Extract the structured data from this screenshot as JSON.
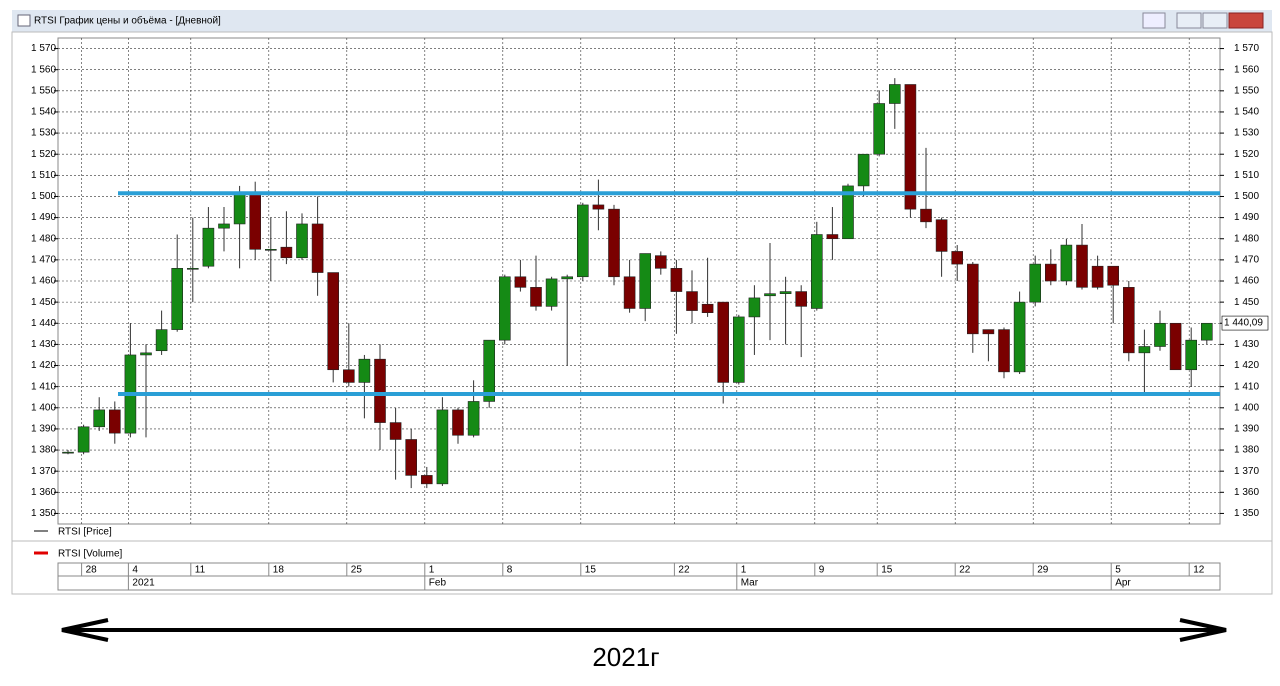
{
  "window": {
    "title": "RTSI График цены и объёма - [Дневной]"
  },
  "chart_data": {
    "type": "candlestick",
    "categories": [
      null,
      "28",
      null,
      null,
      "4",
      null,
      null,
      null,
      "11",
      null,
      null,
      null,
      null,
      "18",
      null,
      null,
      null,
      null,
      "25",
      null,
      null,
      null,
      null,
      "1",
      null,
      null,
      null,
      null,
      "8",
      null,
      null,
      null,
      null,
      "15",
      null,
      null,
      null,
      null,
      null,
      "22",
      null,
      null,
      null,
      "1",
      null,
      null,
      null,
      null,
      "9",
      null,
      null,
      null,
      "15",
      null,
      null,
      null,
      null,
      "22",
      null,
      null,
      null,
      null,
      "29",
      null,
      null,
      null,
      null,
      "5",
      null,
      null,
      null,
      null,
      "12",
      null
    ],
    "months": [
      null,
      null,
      null,
      null,
      "2021",
      null,
      null,
      null,
      null,
      null,
      null,
      null,
      null,
      null,
      null,
      null,
      null,
      null,
      null,
      null,
      null,
      null,
      null,
      "Feb",
      null,
      null,
      null,
      null,
      null,
      null,
      null,
      null,
      null,
      null,
      null,
      null,
      null,
      null,
      null,
      null,
      null,
      null,
      null,
      "Mar",
      null,
      null,
      null,
      null,
      null,
      null,
      null,
      null,
      null,
      null,
      null,
      null,
      null,
      null,
      null,
      null,
      null,
      null,
      null,
      null,
      null,
      null,
      null,
      "Apr",
      null,
      null,
      null,
      null,
      null,
      null
    ],
    "open": [
      1379,
      1379,
      1391,
      1399,
      1388,
      1425,
      1427,
      1437,
      1466,
      1467,
      1485,
      1487,
      1502,
      1475,
      1476,
      1471,
      1487,
      1464,
      1418,
      1412,
      1423,
      1393,
      1385,
      1368,
      1364,
      1399,
      1387,
      1403,
      1432,
      1462,
      1457,
      1448,
      1461,
      1462,
      1496,
      1494,
      1462,
      1447,
      1472,
      1466,
      1455,
      1449,
      1450,
      1412,
      1443,
      1453,
      1454,
      1455,
      1447,
      1482,
      1480,
      1505,
      1520,
      1544,
      1553,
      1494,
      1489,
      1474,
      1468,
      1437,
      1437,
      1417,
      1450,
      1468,
      1460,
      1477,
      1467,
      1467,
      1457,
      1426,
      1429,
      1440,
      1418,
      1432
    ],
    "high": [
      1380,
      1392,
      1405,
      1403,
      1440,
      1430,
      1446,
      1482,
      1490,
      1495,
      1495,
      1505,
      1507,
      1490,
      1493,
      1492,
      1500,
      1464,
      1440,
      1425,
      1430,
      1400,
      1390,
      1372,
      1405,
      1400,
      1413,
      1432,
      1463,
      1470,
      1472,
      1462,
      1463,
      1497,
      1508,
      1496,
      1470,
      1473,
      1474,
      1470,
      1465,
      1471,
      1450,
      1444,
      1458,
      1478,
      1462,
      1458,
      1488,
      1495,
      1506,
      1520,
      1550,
      1556,
      1553,
      1523,
      1490,
      1477,
      1469,
      1437,
      1438,
      1455,
      1472,
      1475,
      1480,
      1487,
      1472,
      1467,
      1460,
      1437,
      1446,
      1440,
      1438,
      1440
    ],
    "low": [
      1378,
      1378,
      1389,
      1383,
      1386,
      1386,
      1425,
      1436,
      1450,
      1466,
      1474,
      1466,
      1470,
      1460,
      1468,
      1470,
      1453,
      1412,
      1410,
      1395,
      1380,
      1366,
      1362,
      1362,
      1363,
      1383,
      1386,
      1400,
      1430,
      1455,
      1446,
      1446,
      1420,
      1460,
      1484,
      1458,
      1445,
      1441,
      1463,
      1435,
      1440,
      1443,
      1402,
      1411,
      1425,
      1432,
      1430,
      1424,
      1446,
      1470,
      1480,
      1500,
      1519,
      1532,
      1490,
      1485,
      1462,
      1460,
      1426,
      1422,
      1414,
      1416,
      1448,
      1458,
      1458,
      1456,
      1456,
      1440,
      1422,
      1407,
      1427,
      1418,
      1410,
      1430
    ],
    "close": [
      1379,
      1391,
      1399,
      1388,
      1425,
      1426,
      1437,
      1466,
      1466,
      1485,
      1487,
      1502,
      1475,
      1475,
      1471,
      1487,
      1464,
      1418,
      1412,
      1423,
      1393,
      1385,
      1368,
      1364,
      1399,
      1387,
      1403,
      1432,
      1462,
      1457,
      1448,
      1461,
      1462,
      1496,
      1494,
      1462,
      1447,
      1473,
      1466,
      1455,
      1446,
      1445,
      1412,
      1443,
      1452,
      1454,
      1455,
      1448,
      1482,
      1480,
      1505,
      1520,
      1544,
      1553,
      1494,
      1488,
      1474,
      1468,
      1435,
      1435,
      1417,
      1450,
      1468,
      1460,
      1477,
      1457,
      1457,
      1458,
      1426,
      1429,
      1440,
      1418,
      1432,
      1440
    ],
    "up_color": "#158a15",
    "down_color": "#7a0000",
    "ylim": [
      1345,
      1575
    ],
    "yticks": [
      {
        "value": 1350,
        "label": "1 350"
      },
      {
        "value": 1360,
        "label": "1 360"
      },
      {
        "value": 1370,
        "label": "1 370"
      },
      {
        "value": 1380,
        "label": "1 380"
      },
      {
        "value": 1390,
        "label": "1 390"
      },
      {
        "value": 1400,
        "label": "1 400"
      },
      {
        "value": 1410,
        "label": "1 410"
      },
      {
        "value": 1420,
        "label": "1 420"
      },
      {
        "value": 1430,
        "label": "1 430"
      },
      {
        "value": 1440,
        "label": "1 440"
      },
      {
        "value": 1450,
        "label": "1 450"
      },
      {
        "value": 1460,
        "label": "1 460"
      },
      {
        "value": 1470,
        "label": "1 470"
      },
      {
        "value": 1480,
        "label": "1 480"
      },
      {
        "value": 1490,
        "label": "1 490"
      },
      {
        "value": 1500,
        "label": "1 500"
      },
      {
        "value": 1510,
        "label": "1 510"
      },
      {
        "value": 1520,
        "label": "1 520"
      },
      {
        "value": 1530,
        "label": "1 530"
      },
      {
        "value": 1540,
        "label": "1 540"
      },
      {
        "value": 1550,
        "label": "1 550"
      },
      {
        "value": 1560,
        "label": "1 560"
      },
      {
        "value": 1570,
        "label": "1 570"
      }
    ],
    "grid": true,
    "levels": [
      {
        "value": 1501.5,
        "color": "#2a9fd6"
      },
      {
        "value": 1406.5,
        "color": "#2a9fd6"
      }
    ],
    "last_price": {
      "value": 1440.09,
      "label": "1 440,09"
    },
    "series": [
      {
        "name": "RTSI [Price]",
        "color": "#000000"
      },
      {
        "name": "RTSI [Volume]",
        "color": "#e00000"
      }
    ]
  },
  "caption": "2021г"
}
